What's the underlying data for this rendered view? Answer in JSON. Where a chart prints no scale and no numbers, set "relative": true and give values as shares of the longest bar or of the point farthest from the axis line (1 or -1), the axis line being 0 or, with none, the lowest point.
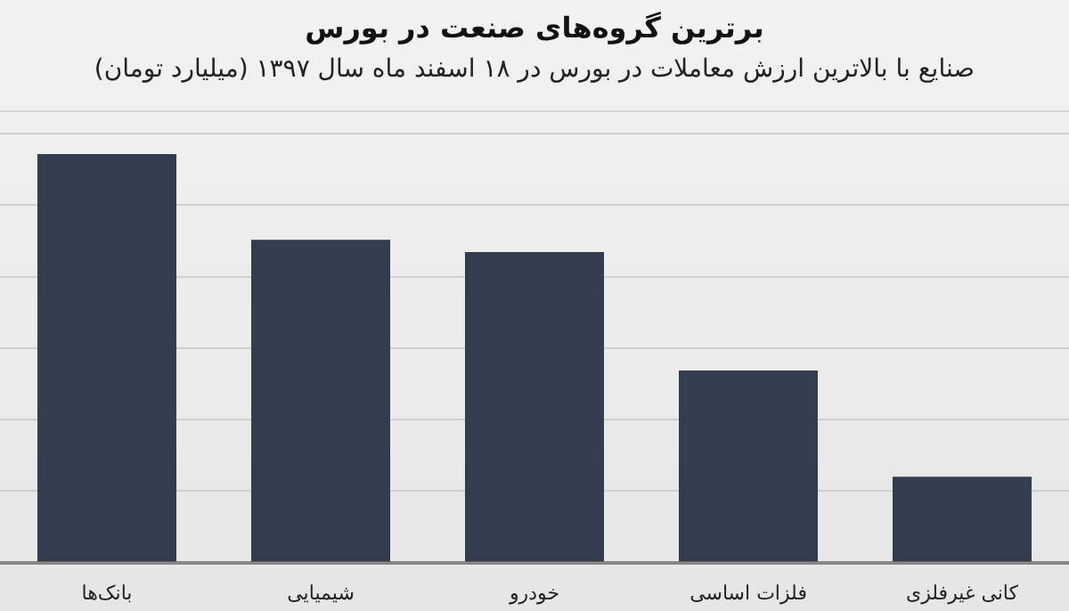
{
  "chart_data": {
    "type": "bar",
    "title": "برترین گروه‌های صنعت در بورس",
    "subtitle": "صنایع با بالاترین ارزش معاملات در بورس در ۱۸ اسفند ماه سال ۱۳۹۷ (میلیارد تومان)",
    "categories": [
      "بانک‌ها",
      "شیمیایی",
      "خودرو",
      "فلزات اساسی",
      "کانی غیرفلزی"
    ],
    "values": [
      1,
      0.79,
      0.76,
      0.47,
      0.21
    ],
    "color": "#333d4d",
    "relative": true,
    "grid": "y"
  }
}
